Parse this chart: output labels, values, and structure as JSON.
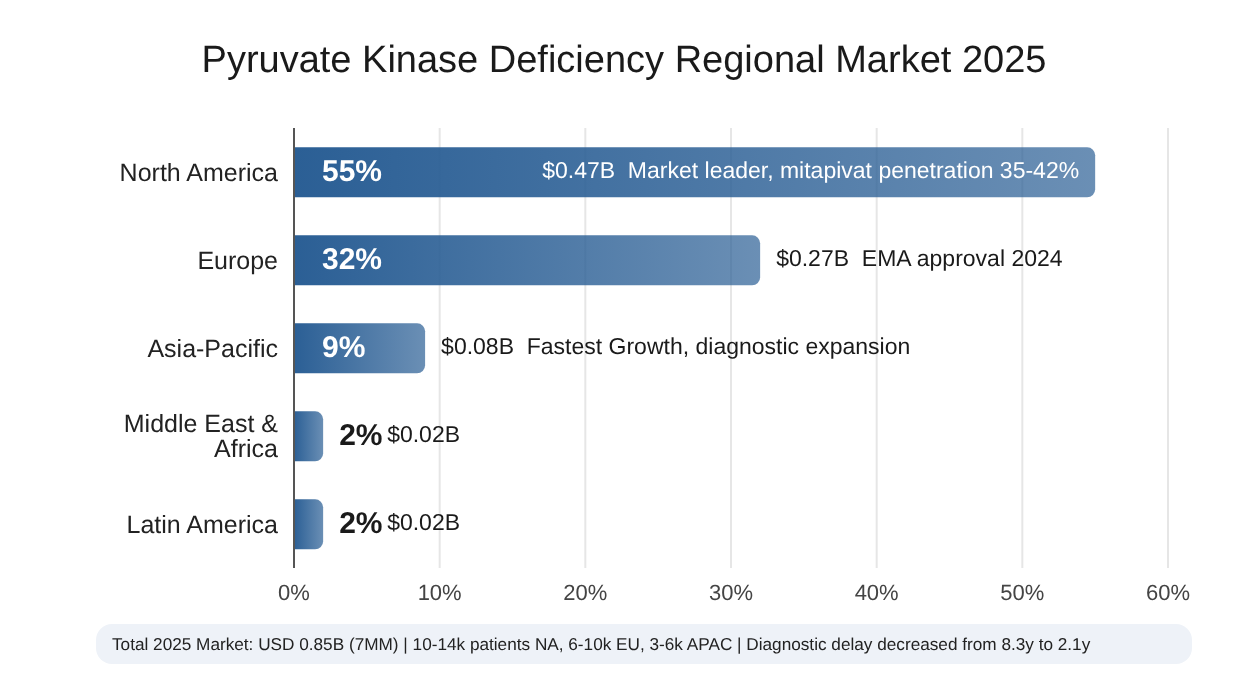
{
  "chart_data": {
    "type": "bar",
    "orientation": "horizontal",
    "title": "Pyruvate Kinase Deficiency Regional Market 2025",
    "categories": [
      "North America",
      "Europe",
      "Asia-Pacific",
      "Middle East & Africa",
      "Latin America"
    ],
    "values": [
      55,
      32,
      9,
      2,
      2
    ],
    "value_labels": [
      "55%",
      "32%",
      "9%",
      "2%",
      "2%"
    ],
    "color": "#2b5f95",
    "xlim": [
      0,
      60
    ],
    "xticks": [
      {
        "value": 0,
        "label": "0%"
      },
      {
        "value": 10,
        "label": "10%"
      },
      {
        "value": 20,
        "label": "20%"
      },
      {
        "value": 30,
        "label": "30%"
      },
      {
        "value": 40,
        "label": "40%"
      },
      {
        "value": 50,
        "label": "50%"
      },
      {
        "value": 60,
        "label": "60%"
      }
    ],
    "grid": "x",
    "legend": false,
    "annotations": [
      "$0.47B  Market leader, mitapivat penetration 35-42%",
      "$0.27B  EMA approval 2024",
      "$0.08B  Fastest Growth, diagnostic expansion",
      "$0.02B",
      "$0.02B",
      "Total 2025 Market: USD 0.85B (7MM) | 10-14k patients NA, 6-10k EU, 3-6k APAC | Diagnostic delay decreased from 8.3y to 2.1y"
    ]
  }
}
